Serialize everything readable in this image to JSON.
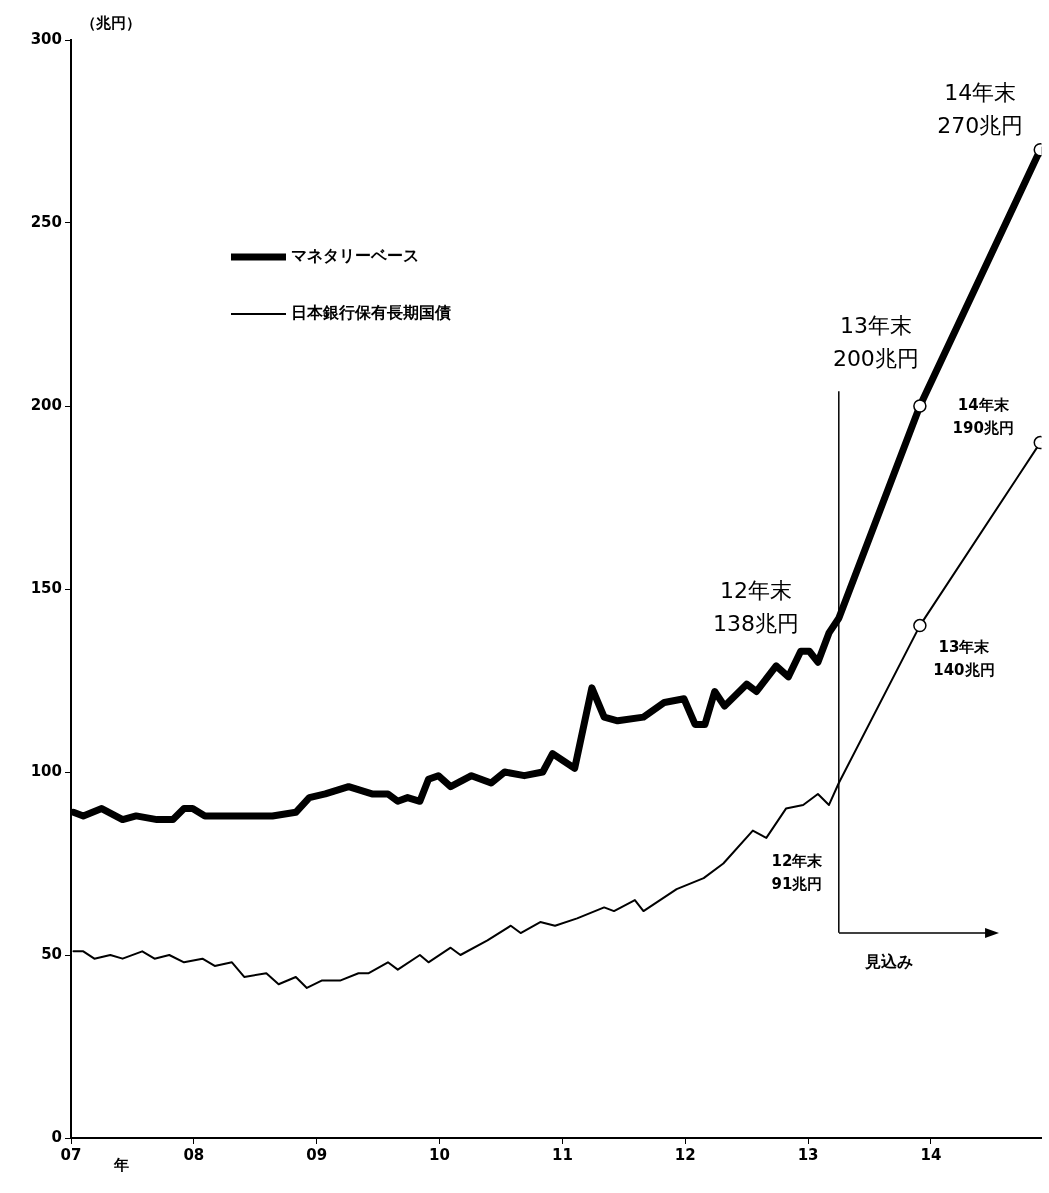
{
  "chart_data": {
    "type": "line",
    "ylabel": "（兆円）",
    "xlabel": "年",
    "xlim": [
      2007,
      2014.9
    ],
    "xticks": [
      {
        "value": 2007,
        "label": "07"
      },
      {
        "value": 2008,
        "label": "08"
      },
      {
        "value": 2009,
        "label": "09"
      },
      {
        "value": 2010,
        "label": "10"
      },
      {
        "value": 2011,
        "label": "11"
      },
      {
        "value": 2012,
        "label": "12"
      },
      {
        "value": 2013,
        "label": "13"
      },
      {
        "value": 2014,
        "label": "14"
      }
    ],
    "ylim": [
      0,
      300
    ],
    "yticks": [
      0,
      50,
      100,
      150,
      200,
      250,
      300
    ],
    "grid": false,
    "legend": "top left",
    "line_style": "solid",
    "series": [
      {
        "name": "マネタリーベース",
        "color": "#000000",
        "x": [
          2007.02,
          2007.1,
          2007.25,
          2007.42,
          2007.53,
          2007.7,
          2007.83,
          2007.92,
          2007.99,
          2008.09,
          2008.26,
          2008.64,
          2008.83,
          2008.94,
          2009.07,
          2009.26,
          2009.45,
          2009.58,
          2009.66,
          2009.74,
          2009.84,
          2009.91,
          2009.99,
          2010.09,
          2010.26,
          2010.42,
          2010.53,
          2010.69,
          2010.84,
          2010.92,
          2011.1,
          2011.24,
          2011.34,
          2011.45,
          2011.66,
          2011.83,
          2011.99,
          2012.08,
          2012.16,
          2012.24,
          2012.32,
          2012.5,
          2012.58,
          2012.74,
          2012.84,
          2012.94,
          2013.01,
          2013.08,
          2013.17,
          2013.25,
          2013.91,
          2014.89
        ],
        "values": [
          89,
          88,
          90,
          87,
          88,
          87,
          87,
          90,
          90,
          88,
          88,
          88,
          89,
          93,
          94,
          96,
          94,
          94,
          92,
          93,
          92,
          98,
          99,
          96,
          99,
          97,
          100,
          99,
          100,
          105,
          101,
          123,
          115,
          114,
          115,
          119,
          120,
          113,
          113,
          122,
          118,
          124,
          122,
          129,
          126,
          133,
          133,
          130,
          138,
          142,
          200,
          270
        ]
      },
      {
        "name": "日本銀行保有長期国債",
        "color": "#000000",
        "x": [
          2007.02,
          2007.1,
          2007.19,
          2007.32,
          2007.42,
          2007.58,
          2007.68,
          2007.8,
          2007.92,
          2008.07,
          2008.17,
          2008.31,
          2008.41,
          2008.59,
          2008.69,
          2008.83,
          2008.92,
          2009.04,
          2009.19,
          2009.34,
          2009.42,
          2009.58,
          2009.66,
          2009.84,
          2009.91,
          2010.09,
          2010.17,
          2010.39,
          2010.58,
          2010.66,
          2010.82,
          2010.94,
          2011.12,
          2011.34,
          2011.42,
          2011.59,
          2011.66,
          2011.93,
          2012.15,
          2012.31,
          2012.55,
          2012.66,
          2012.82,
          2012.96,
          2013.08,
          2013.17,
          2013.25,
          2013.91,
          2014.89
        ],
        "values": [
          51,
          51,
          49,
          50,
          49,
          51,
          49,
          50,
          48,
          49,
          47,
          48,
          44,
          45,
          42,
          44,
          41,
          43,
          43,
          45,
          45,
          48,
          46,
          50,
          48,
          52,
          50,
          54,
          58,
          56,
          59,
          58,
          60,
          63,
          62,
          65,
          62,
          68,
          71,
          75,
          84,
          82,
          90,
          91,
          94,
          91,
          97,
          140,
          190
        ]
      }
    ],
    "ref_lines": [
      {
        "axis": "x",
        "value": 2013.25,
        "label": "見込み"
      }
    ],
    "annotations": [
      {
        "text": "12年末\n138兆円",
        "x": 2013.17,
        "y": 138
      },
      {
        "text": "13年末\n200兆円",
        "x": 2013.91,
        "y": 200
      },
      {
        "text": "14年末\n270兆円",
        "x": 2014.89,
        "y": 270
      },
      "12年末\n91兆円",
      {
        "text": "13年末\n140兆円",
        "x": 2013.91,
        "y": 140
      },
      {
        "text": "14年末\n190兆円",
        "x": 2014.89,
        "y": 190
      }
    ]
  }
}
